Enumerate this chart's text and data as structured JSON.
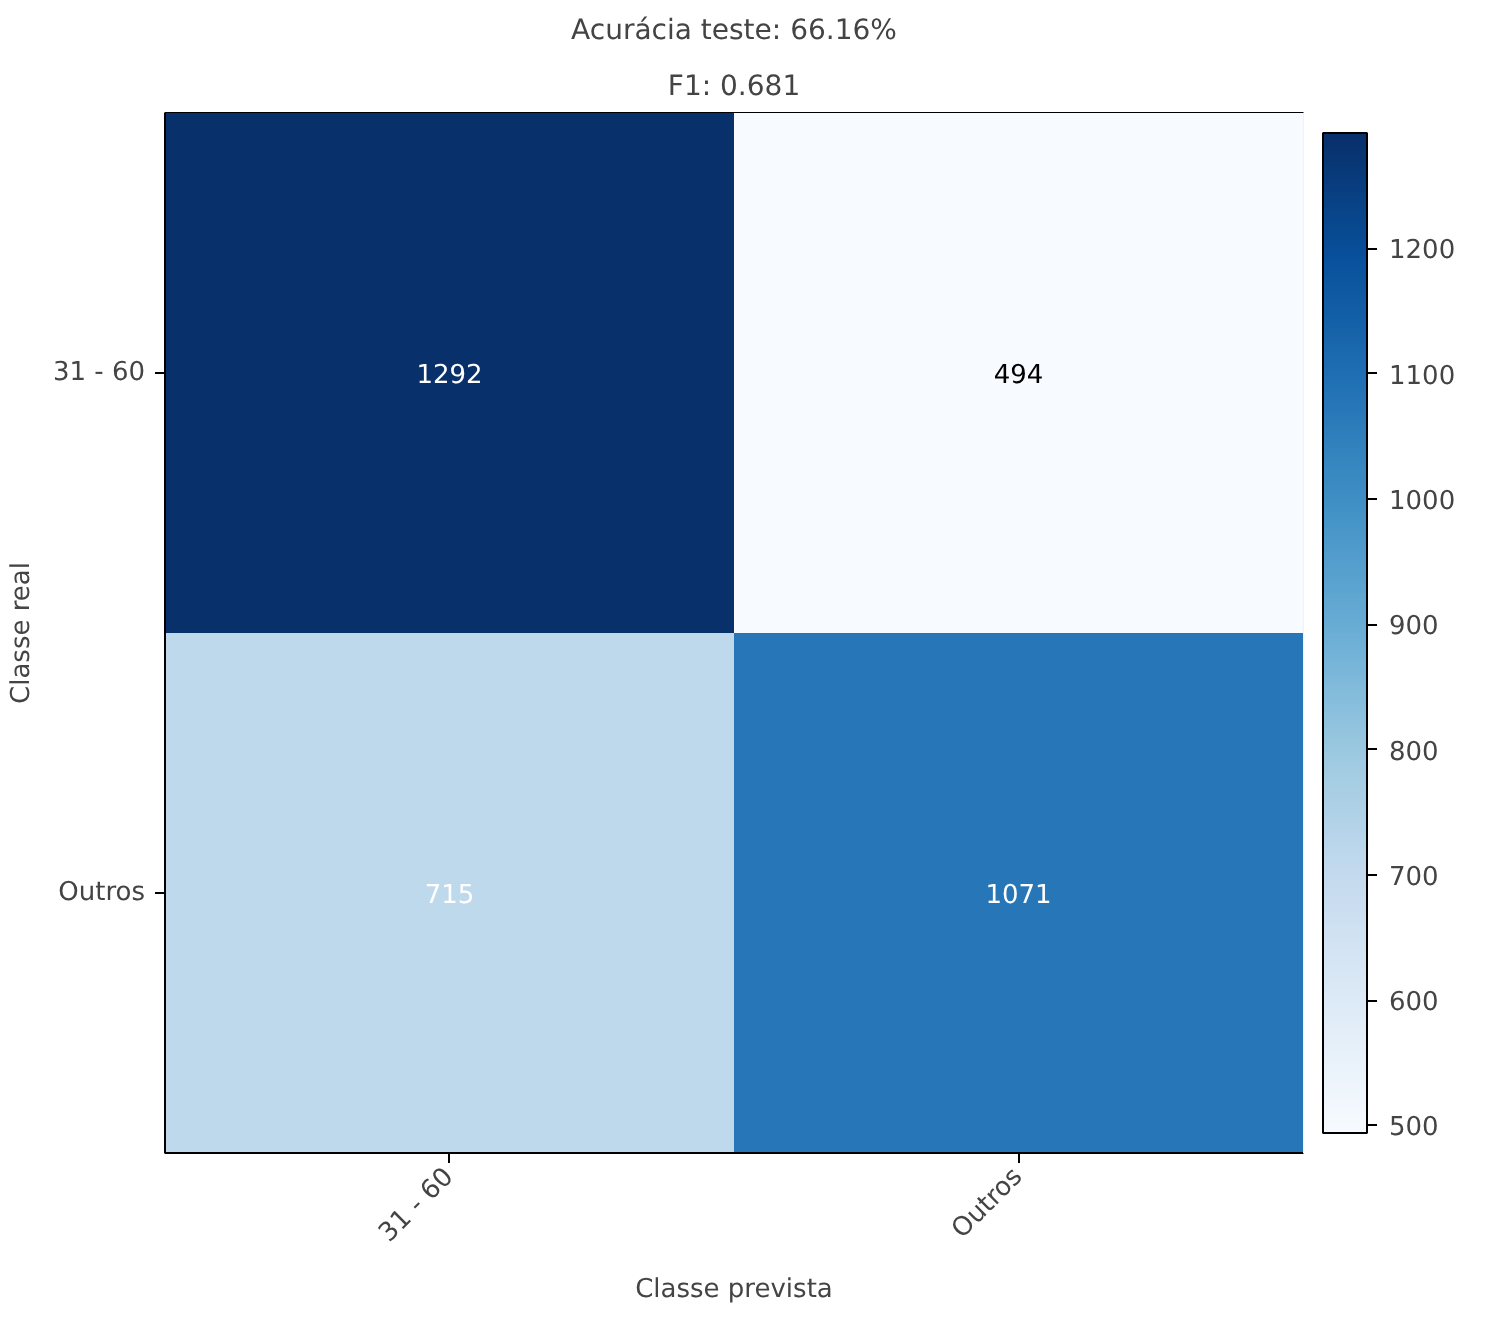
{
  "chart_data": {
    "type": "heatmap",
    "title": "Acurácia teste: 66.16%",
    "subtitle": "F1: 0.681",
    "xlabel": "Classe prevista",
    "ylabel": "Classe real",
    "categories": [
      "31 - 60",
      "Outros"
    ],
    "y_categories": [
      "31 - 60",
      "Outros"
    ],
    "cells": [
      [
        1292,
        494
      ],
      [
        715,
        1071
      ]
    ],
    "data_labels": true,
    "clim": [
      494,
      1292
    ],
    "cticks": [
      500,
      600,
      700,
      800,
      900,
      1000,
      1100,
      1200
    ]
  }
}
